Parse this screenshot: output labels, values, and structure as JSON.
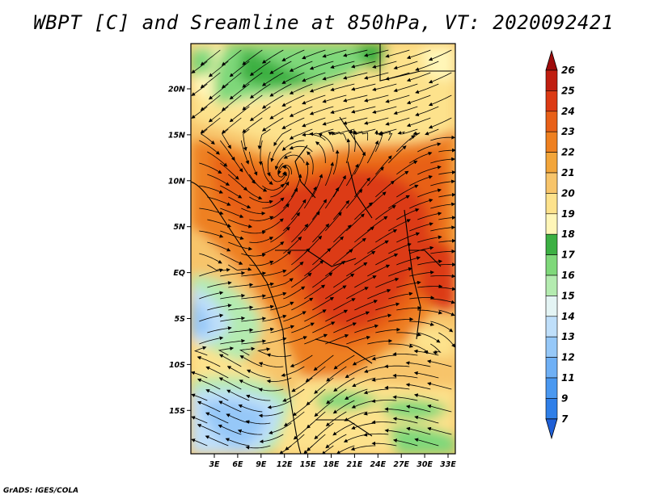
{
  "title": "WBPT [C] and Sreamline at 850hPa, VT: 2020092421",
  "credit": "GrADS: IGES/COLA",
  "map": {
    "lat_ticks": [
      "20N",
      "15N",
      "10N",
      "5N",
      "EQ",
      "5S",
      "10S",
      "15S"
    ],
    "lon_ticks": [
      "3E",
      "6E",
      "9E",
      "12E",
      "15E",
      "18E",
      "21E",
      "24E",
      "27E",
      "30E",
      "33E"
    ]
  },
  "colorbar": {
    "levels": [
      "7",
      "9",
      "11",
      "12",
      "13",
      "14",
      "15",
      "16",
      "17",
      "18",
      "19",
      "20",
      "21",
      "22",
      "23",
      "24",
      "25",
      "26"
    ],
    "colors": [
      "#1f5fd6",
      "#2f7fe8",
      "#4a98f0",
      "#6fb0f5",
      "#96c8f8",
      "#bfdffa",
      "#e4f4f4",
      "#b4ebb0",
      "#7fd87a",
      "#3cb043",
      "#fff6b8",
      "#fde28c",
      "#f7c46a",
      "#f2a53a",
      "#ee8020",
      "#e86018",
      "#dc3a14",
      "#c01e10",
      "#9e0c0c"
    ]
  }
}
